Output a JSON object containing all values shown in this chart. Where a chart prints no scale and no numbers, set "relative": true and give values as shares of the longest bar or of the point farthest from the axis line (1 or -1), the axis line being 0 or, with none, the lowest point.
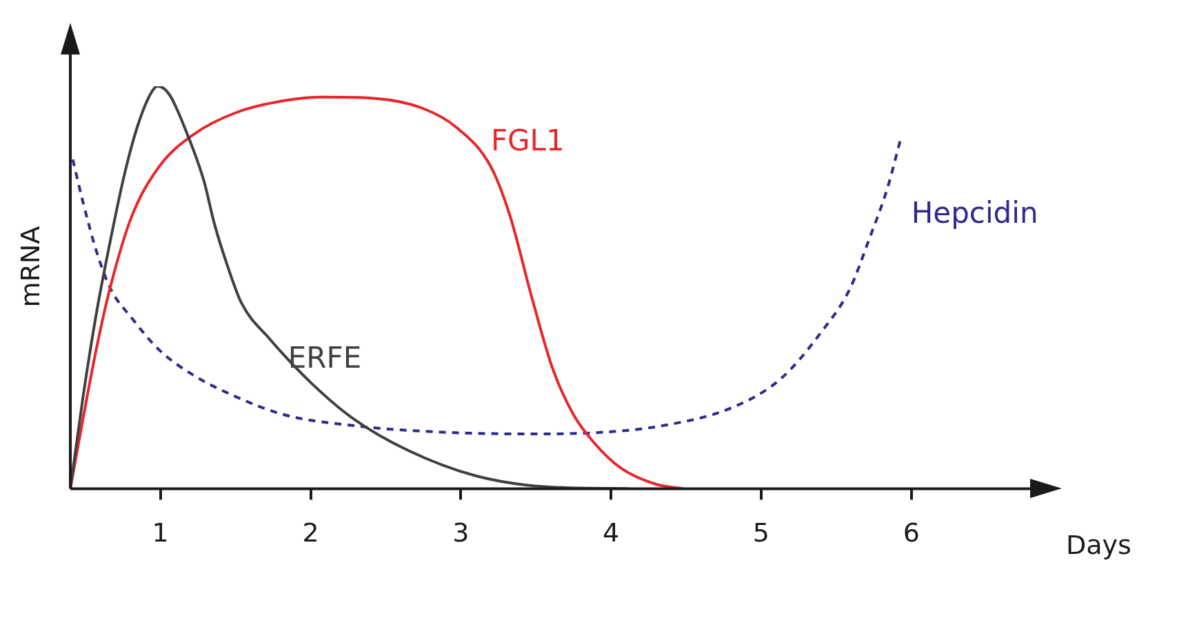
{
  "chart_data": {
    "type": "line",
    "xlabel": "Days",
    "ylabel": "mRNA",
    "relative": true,
    "xlim": [
      0.4,
      6.8
    ],
    "xticks": [
      1,
      2,
      3,
      4,
      5,
      6
    ],
    "grid": false,
    "legend": false,
    "marker": "none",
    "series": [
      {
        "name": "ERFE",
        "color": "#404040",
        "line_style": "solid",
        "x": [
          0.4,
          0.485,
          0.577,
          0.669,
          0.761,
          0.853,
          0.945,
          0.982,
          1.06,
          1.17,
          1.29,
          1.36,
          1.45,
          1.54,
          1.73,
          2.0,
          2.28,
          2.65,
          3.1,
          3.56,
          4.12
        ],
        "values": [
          0,
          0.229,
          0.443,
          0.621,
          0.782,
          0.907,
          0.988,
          1,
          0.979,
          0.889,
          0.764,
          0.657,
          0.55,
          0.461,
          0.371,
          0.264,
          0.175,
          0.095,
          0.032,
          0.005,
          0
        ]
      },
      {
        "name": "FGL1",
        "color": "#e8262b",
        "line_style": "solid",
        "x": [
          0.4,
          0.485,
          0.577,
          0.669,
          0.807,
          0.991,
          1.22,
          1.5,
          1.82,
          2.09,
          2.42,
          2.74,
          2.97,
          3.2,
          3.33,
          3.47,
          3.61,
          3.75,
          3.89,
          4.07,
          4.3,
          4.48
        ],
        "values": [
          0,
          0.175,
          0.354,
          0.505,
          0.675,
          0.8,
          0.88,
          0.934,
          0.964,
          0.973,
          0.97,
          0.946,
          0.898,
          0.8,
          0.675,
          0.479,
          0.3,
          0.184,
          0.113,
          0.05,
          0.011,
          0
        ]
      },
      {
        "name": "Hepcidin",
        "color": "#2e2a8c",
        "line_style": "dashed",
        "x": [
          0.416,
          0.485,
          0.577,
          0.669,
          0.807,
          0.991,
          1.22,
          1.5,
          1.82,
          2.28,
          2.74,
          3.43,
          3.89,
          4.35,
          4.81,
          5.13,
          5.4,
          5.59,
          5.72,
          5.84,
          5.93
        ],
        "values": [
          0.818,
          0.711,
          0.586,
          0.496,
          0.425,
          0.345,
          0.282,
          0.229,
          0.184,
          0.157,
          0.143,
          0.136,
          0.139,
          0.157,
          0.202,
          0.273,
          0.389,
          0.496,
          0.621,
          0.746,
          0.871
        ]
      }
    ]
  }
}
